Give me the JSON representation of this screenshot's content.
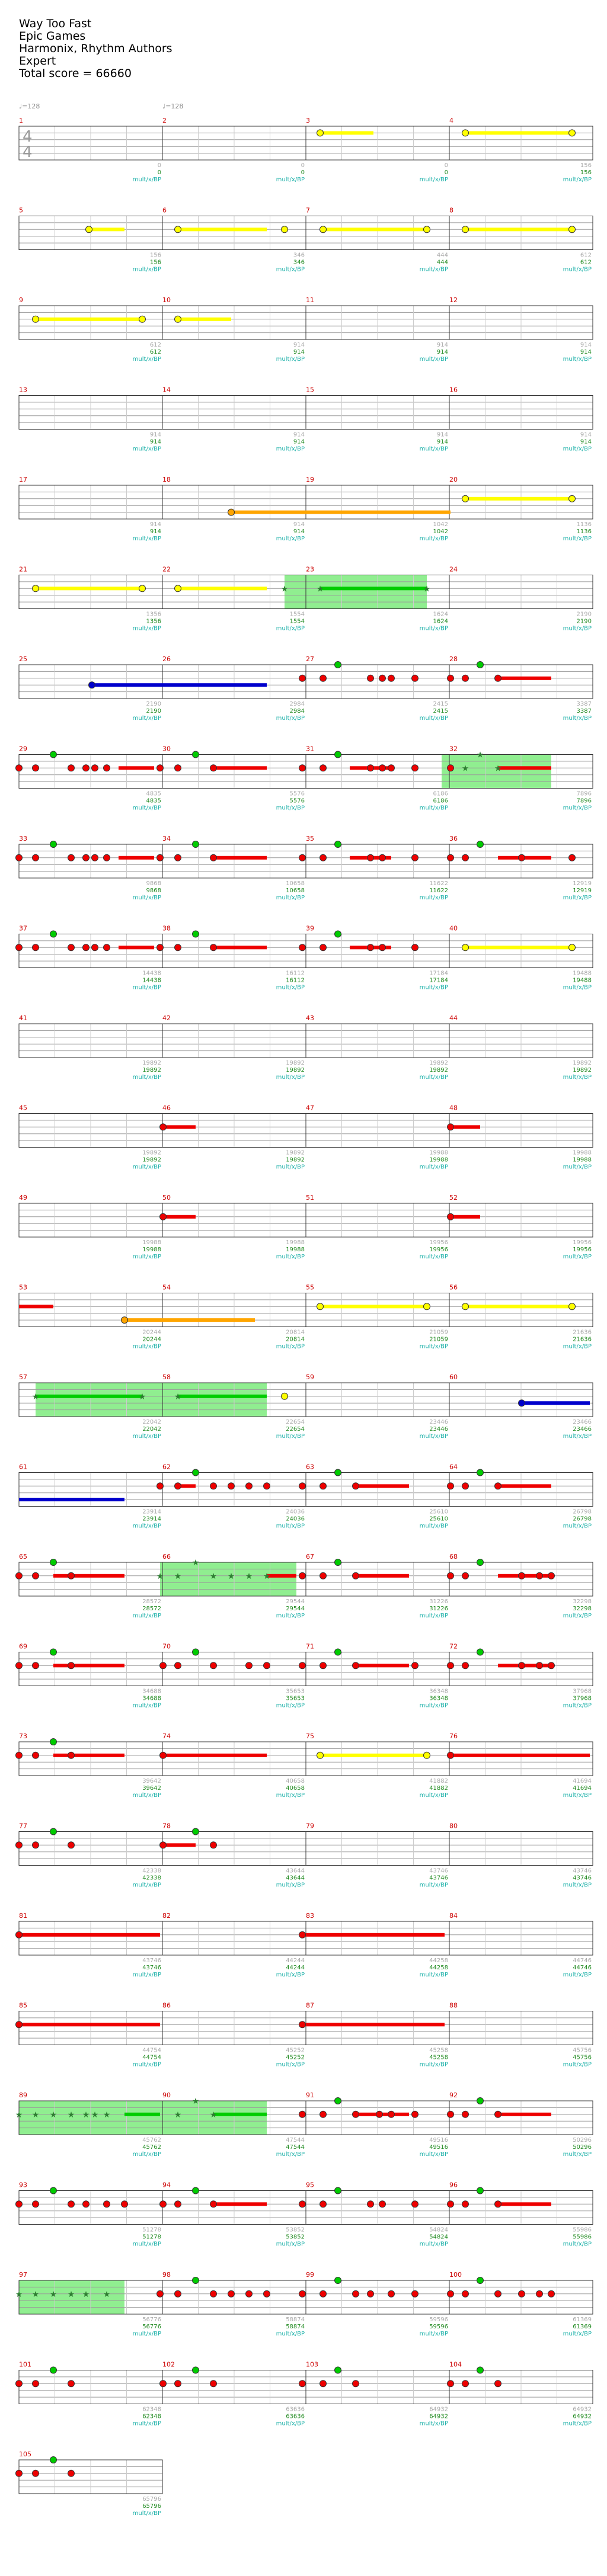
{
  "song": {
    "title": "Way Too Fast",
    "artist": "Epic Games",
    "charter": "Harmonix, Rhythm Authors",
    "difficulty": "Expert",
    "total_score_text": "Total score = 66660"
  },
  "labels": {
    "tempo": "♩=128",
    "time_sig_top": "4",
    "time_sig_bottom": "4",
    "multiplier": "mult/x/BP"
  },
  "colors": {
    "staff_line": "#999999",
    "staff_border": "#333333",
    "measure_number": "#cc0000",
    "score_text": "#228b22",
    "mult_text": "#20b2aa",
    "yellow": "#ffff00",
    "orange": "#ffa500",
    "blue": "#0000cc",
    "red": "#ee0000",
    "green": "#00cc00",
    "star_power": "#90ee90"
  },
  "icons": {
    "note": "note-gem-icon",
    "star": "star-note-icon",
    "tempo": "quarter-note-icon"
  },
  "measures": [
    {
      "num": "1",
      "score": "0",
      "count": "0"
    },
    {
      "num": "2",
      "score": "0",
      "count": "0"
    },
    {
      "num": "3",
      "score": "0",
      "count": "0"
    },
    {
      "num": "4",
      "score": "156",
      "count": "156"
    },
    {
      "num": "5",
      "score": "156",
      "count": "156"
    },
    {
      "num": "6",
      "score": "346",
      "count": "346"
    },
    {
      "num": "7",
      "score": "444",
      "count": "444"
    },
    {
      "num": "8",
      "score": "612",
      "count": "612"
    },
    {
      "num": "9",
      "score": "612",
      "count": "612"
    },
    {
      "num": "10",
      "score": "914",
      "count": "914"
    },
    {
      "num": "11",
      "score": "914",
      "count": "914"
    },
    {
      "num": "12",
      "score": "914",
      "count": "914"
    },
    {
      "num": "13",
      "score": "914",
      "count": "914"
    },
    {
      "num": "14",
      "score": "914",
      "count": "914"
    },
    {
      "num": "15",
      "score": "914",
      "count": "914"
    },
    {
      "num": "16",
      "score": "914",
      "count": "914"
    },
    {
      "num": "17",
      "score": "914",
      "count": "914"
    },
    {
      "num": "18",
      "score": "914",
      "count": "914"
    },
    {
      "num": "19",
      "score": "1042",
      "count": "1042"
    },
    {
      "num": "20",
      "score": "1136",
      "count": "1136"
    },
    {
      "num": "21",
      "score": "1356",
      "count": "1356"
    },
    {
      "num": "22",
      "score": "1554",
      "count": "1554"
    },
    {
      "num": "23",
      "score": "1624",
      "count": "1624"
    },
    {
      "num": "24",
      "score": "2190",
      "count": "2190"
    },
    {
      "num": "25",
      "score": "2190",
      "count": "2190"
    },
    {
      "num": "26",
      "score": "2984",
      "count": "2984"
    },
    {
      "num": "27",
      "score": "2415",
      "count": "2415"
    },
    {
      "num": "28",
      "score": "3387",
      "count": "3387"
    },
    {
      "num": "29",
      "score": "4835",
      "count": "4835"
    },
    {
      "num": "30",
      "score": "5576",
      "count": "5576"
    },
    {
      "num": "31",
      "score": "6186",
      "count": "6186"
    },
    {
      "num": "32",
      "score": "7896",
      "count": "7896"
    },
    {
      "num": "33",
      "score": "9868",
      "count": "9868"
    },
    {
      "num": "34",
      "score": "10658",
      "count": "10658"
    },
    {
      "num": "35",
      "score": "11622",
      "count": "11622"
    },
    {
      "num": "36",
      "score": "12919",
      "count": "12919"
    },
    {
      "num": "37",
      "score": "14438",
      "count": "14438"
    },
    {
      "num": "38",
      "score": "16112",
      "count": "16112"
    },
    {
      "num": "39",
      "score": "17184",
      "count": "17184"
    },
    {
      "num": "40",
      "score": "19488",
      "count": "19488"
    },
    {
      "num": "41",
      "score": "19892",
      "count": "19892"
    },
    {
      "num": "42",
      "score": "19892",
      "count": "19892"
    },
    {
      "num": "43",
      "score": "19892",
      "count": "19892"
    },
    {
      "num": "44",
      "score": "19892",
      "count": "19892"
    },
    {
      "num": "45",
      "score": "19892",
      "count": "19892"
    },
    {
      "num": "46",
      "score": "19892",
      "count": "19892"
    },
    {
      "num": "47",
      "score": "19988",
      "count": "19988"
    },
    {
      "num": "48",
      "score": "19988",
      "count": "19988"
    },
    {
      "num": "49",
      "score": "19988",
      "count": "19988"
    },
    {
      "num": "50",
      "score": "19988",
      "count": "19988"
    },
    {
      "num": "51",
      "score": "19956",
      "count": "19956"
    },
    {
      "num": "52",
      "score": "19956",
      "count": "19956"
    },
    {
      "num": "53",
      "score": "20244",
      "count": "20244"
    },
    {
      "num": "54",
      "score": "20814",
      "count": "20814"
    },
    {
      "num": "55",
      "score": "21059",
      "count": "21059"
    },
    {
      "num": "56",
      "score": "21636",
      "count": "21636"
    },
    {
      "num": "57",
      "score": "22042",
      "count": "22042"
    },
    {
      "num": "58",
      "score": "22654",
      "count": "22654"
    },
    {
      "num": "59",
      "score": "23446",
      "count": "23446"
    },
    {
      "num": "60",
      "score": "23466",
      "count": "23466"
    },
    {
      "num": "61",
      "score": "23914",
      "count": "23914"
    },
    {
      "num": "62",
      "score": "24036",
      "count": "24036"
    },
    {
      "num": "63",
      "score": "25610",
      "count": "25610"
    },
    {
      "num": "64",
      "score": "26798",
      "count": "26798"
    },
    {
      "num": "65",
      "score": "28572",
      "count": "28572"
    },
    {
      "num": "66",
      "score": "29544",
      "count": "29544"
    },
    {
      "num": "67",
      "score": "31226",
      "count": "31226"
    },
    {
      "num": "68",
      "score": "32298",
      "count": "32298"
    },
    {
      "num": "69",
      "score": "34688",
      "count": "34688"
    },
    {
      "num": "70",
      "score": "35653",
      "count": "35653"
    },
    {
      "num": "71",
      "score": "36348",
      "count": "36348"
    },
    {
      "num": "72",
      "score": "37968",
      "count": "37968"
    },
    {
      "num": "73",
      "score": "39642",
      "count": "39642"
    },
    {
      "num": "74",
      "score": "40658",
      "count": "40658"
    },
    {
      "num": "75",
      "score": "41882",
      "count": "41882"
    },
    {
      "num": "76",
      "score": "41694",
      "count": "41694"
    },
    {
      "num": "77",
      "score": "42338",
      "count": "42338"
    },
    {
      "num": "78",
      "score": "43644",
      "count": "43644"
    },
    {
      "num": "79",
      "score": "43746",
      "count": "43746"
    },
    {
      "num": "80",
      "score": "43746",
      "count": "43746"
    },
    {
      "num": "81",
      "score": "43746",
      "count": "43746"
    },
    {
      "num": "82",
      "score": "44244",
      "count": "44244"
    },
    {
      "num": "83",
      "score": "44258",
      "count": "44258"
    },
    {
      "num": "84",
      "score": "44746",
      "count": "44746"
    },
    {
      "num": "85",
      "score": "44754",
      "count": "44754"
    },
    {
      "num": "86",
      "score": "45252",
      "count": "45252"
    },
    {
      "num": "87",
      "score": "45258",
      "count": "45258"
    },
    {
      "num": "88",
      "score": "45756",
      "count": "45756"
    },
    {
      "num": "89",
      "score": "45762",
      "count": "45762"
    },
    {
      "num": "90",
      "score": "47544",
      "count": "47544"
    },
    {
      "num": "91",
      "score": "49516",
      "count": "49516"
    },
    {
      "num": "92",
      "score": "50296",
      "count": "50296"
    },
    {
      "num": "93",
      "score": "51278",
      "count": "51278"
    },
    {
      "num": "94",
      "score": "53852",
      "count": "53852"
    },
    {
      "num": "95",
      "score": "54824",
      "count": "54824"
    },
    {
      "num": "96",
      "score": "55986",
      "count": "55986"
    },
    {
      "num": "97",
      "score": "56776",
      "count": "56776"
    },
    {
      "num": "98",
      "score": "58874",
      "count": "58874"
    },
    {
      "num": "99",
      "score": "59596",
      "count": "59596"
    },
    {
      "num": "100",
      "score": "61369",
      "count": "61369"
    },
    {
      "num": "101",
      "score": "62348",
      "count": "62348"
    },
    {
      "num": "102",
      "score": "63636",
      "count": "63636"
    },
    {
      "num": "103",
      "score": "64932",
      "count": "64932"
    },
    {
      "num": "104",
      "score": "64932",
      "count": "64932"
    },
    {
      "num": "105",
      "score": "65796",
      "count": "65796"
    }
  ],
  "final_score": "66660"
}
